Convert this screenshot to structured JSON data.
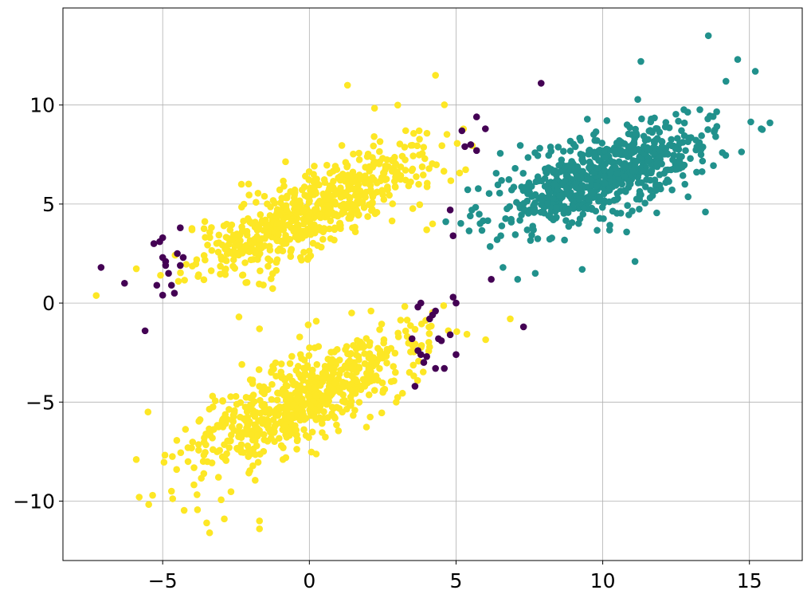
{
  "chart_data": {
    "type": "scatter",
    "title": "",
    "xlabel": "",
    "ylabel": "",
    "xlim": [
      -8.4,
      16.8
    ],
    "ylim": [
      -13.0,
      14.9
    ],
    "grid": true,
    "x_ticks": [
      -5,
      0,
      5,
      10,
      15
    ],
    "y_ticks": [
      -10,
      -5,
      0,
      5,
      10
    ],
    "x_tick_labels": [
      "−5",
      "0",
      "5",
      "10",
      "15"
    ],
    "y_tick_labels": [
      "−10",
      "−5",
      "0",
      "5",
      "10"
    ],
    "colors": {
      "purple": "#440154",
      "teal": "#21918c",
      "yellow": "#fde725"
    },
    "clusters": [
      {
        "color": "yellow",
        "n": 650,
        "center": [
          0.0,
          4.6
        ],
        "major_std": 2.4,
        "minor_std": 0.8,
        "angle_deg": 38,
        "seed": 11
      },
      {
        "color": "yellow",
        "n": 650,
        "center": [
          -0.3,
          -5.0
        ],
        "major_std": 2.4,
        "minor_std": 0.85,
        "angle_deg": 40,
        "seed": 23
      },
      {
        "color": "teal",
        "n": 700,
        "center": [
          10.0,
          6.5
        ],
        "major_std": 2.0,
        "minor_std": 0.9,
        "angle_deg": 33,
        "seed": 37
      }
    ],
    "explicit_points": {
      "purple": [
        [
          -7.1,
          1.8
        ],
        [
          -6.3,
          1.0
        ],
        [
          -5.6,
          -1.4
        ],
        [
          -5.3,
          3.0
        ],
        [
          -5.0,
          3.3
        ],
        [
          -5.1,
          3.1
        ],
        [
          -5.0,
          2.3
        ],
        [
          -4.9,
          1.9
        ],
        [
          -4.8,
          1.5
        ],
        [
          -4.7,
          0.9
        ],
        [
          -4.6,
          0.5
        ],
        [
          -4.5,
          2.5
        ],
        [
          -4.4,
          3.8
        ],
        [
          -4.3,
          2.3
        ],
        [
          -4.4,
          1.9
        ],
        [
          -4.9,
          2.1
        ],
        [
          -5.2,
          0.9
        ],
        [
          -5.0,
          0.4
        ],
        [
          3.5,
          -1.8
        ],
        [
          3.7,
          -2.4
        ],
        [
          3.8,
          -2.6
        ],
        [
          3.9,
          -3.0
        ],
        [
          4.0,
          -2.7
        ],
        [
          4.1,
          -0.8
        ],
        [
          4.2,
          -0.6
        ],
        [
          4.3,
          -0.4
        ],
        [
          4.4,
          -1.8
        ],
        [
          4.5,
          -1.9
        ],
        [
          4.3,
          -3.3
        ],
        [
          4.6,
          -3.3
        ],
        [
          3.6,
          -4.2
        ],
        [
          3.8,
          0.0
        ],
        [
          3.7,
          -0.2
        ],
        [
          5.0,
          0.0
        ],
        [
          5.0,
          -2.6
        ],
        [
          4.8,
          -1.6
        ],
        [
          4.9,
          0.3
        ],
        [
          5.2,
          8.7
        ],
        [
          5.5,
          8.0
        ],
        [
          5.7,
          9.4
        ],
        [
          6.0,
          8.8
        ],
        [
          5.3,
          7.9
        ],
        [
          5.7,
          7.7
        ],
        [
          4.8,
          4.7
        ],
        [
          4.9,
          3.4
        ],
        [
          6.2,
          1.2
        ],
        [
          7.9,
          11.1
        ],
        [
          7.3,
          -1.2
        ]
      ],
      "yellow": [
        [
          4.3,
          11.5
        ],
        [
          1.3,
          11.0
        ],
        [
          -4.0,
          3.7
        ],
        [
          -5.5,
          -5.5
        ],
        [
          -5.9,
          -7.9
        ],
        [
          -5.8,
          -9.8
        ],
        [
          -3.4,
          -11.6
        ],
        [
          -3.5,
          -11.1
        ],
        [
          -1.7,
          -11.4
        ],
        [
          -1.7,
          -11.0
        ],
        [
          -2.9,
          -10.9
        ],
        [
          -2.4,
          -0.7
        ],
        [
          -1.7,
          -1.3
        ],
        [
          -2.3,
          -3.1
        ],
        [
          -1.3,
          -3.5
        ],
        [
          -3.3,
          -4.7
        ],
        [
          1.3,
          5.0
        ],
        [
          4.2,
          4.0
        ],
        [
          4.0,
          3.7
        ],
        [
          2.1,
          -0.4
        ],
        [
          -4.7,
          -9.5
        ],
        [
          -0.9,
          -7.9
        ],
        [
          0.5,
          -5.8
        ]
      ],
      "teal": [
        [
          13.6,
          13.5
        ],
        [
          14.6,
          12.3
        ],
        [
          11.3,
          12.2
        ],
        [
          15.4,
          8.8
        ],
        [
          15.7,
          9.1
        ],
        [
          12.8,
          6.0
        ],
        [
          13.5,
          4.6
        ],
        [
          11.1,
          2.1
        ],
        [
          9.3,
          1.7
        ],
        [
          7.1,
          1.2
        ],
        [
          7.7,
          1.5
        ],
        [
          6.6,
          1.8
        ],
        [
          6.4,
          3.2
        ],
        [
          15.2,
          11.7
        ],
        [
          14.2,
          11.2
        ]
      ]
    }
  }
}
